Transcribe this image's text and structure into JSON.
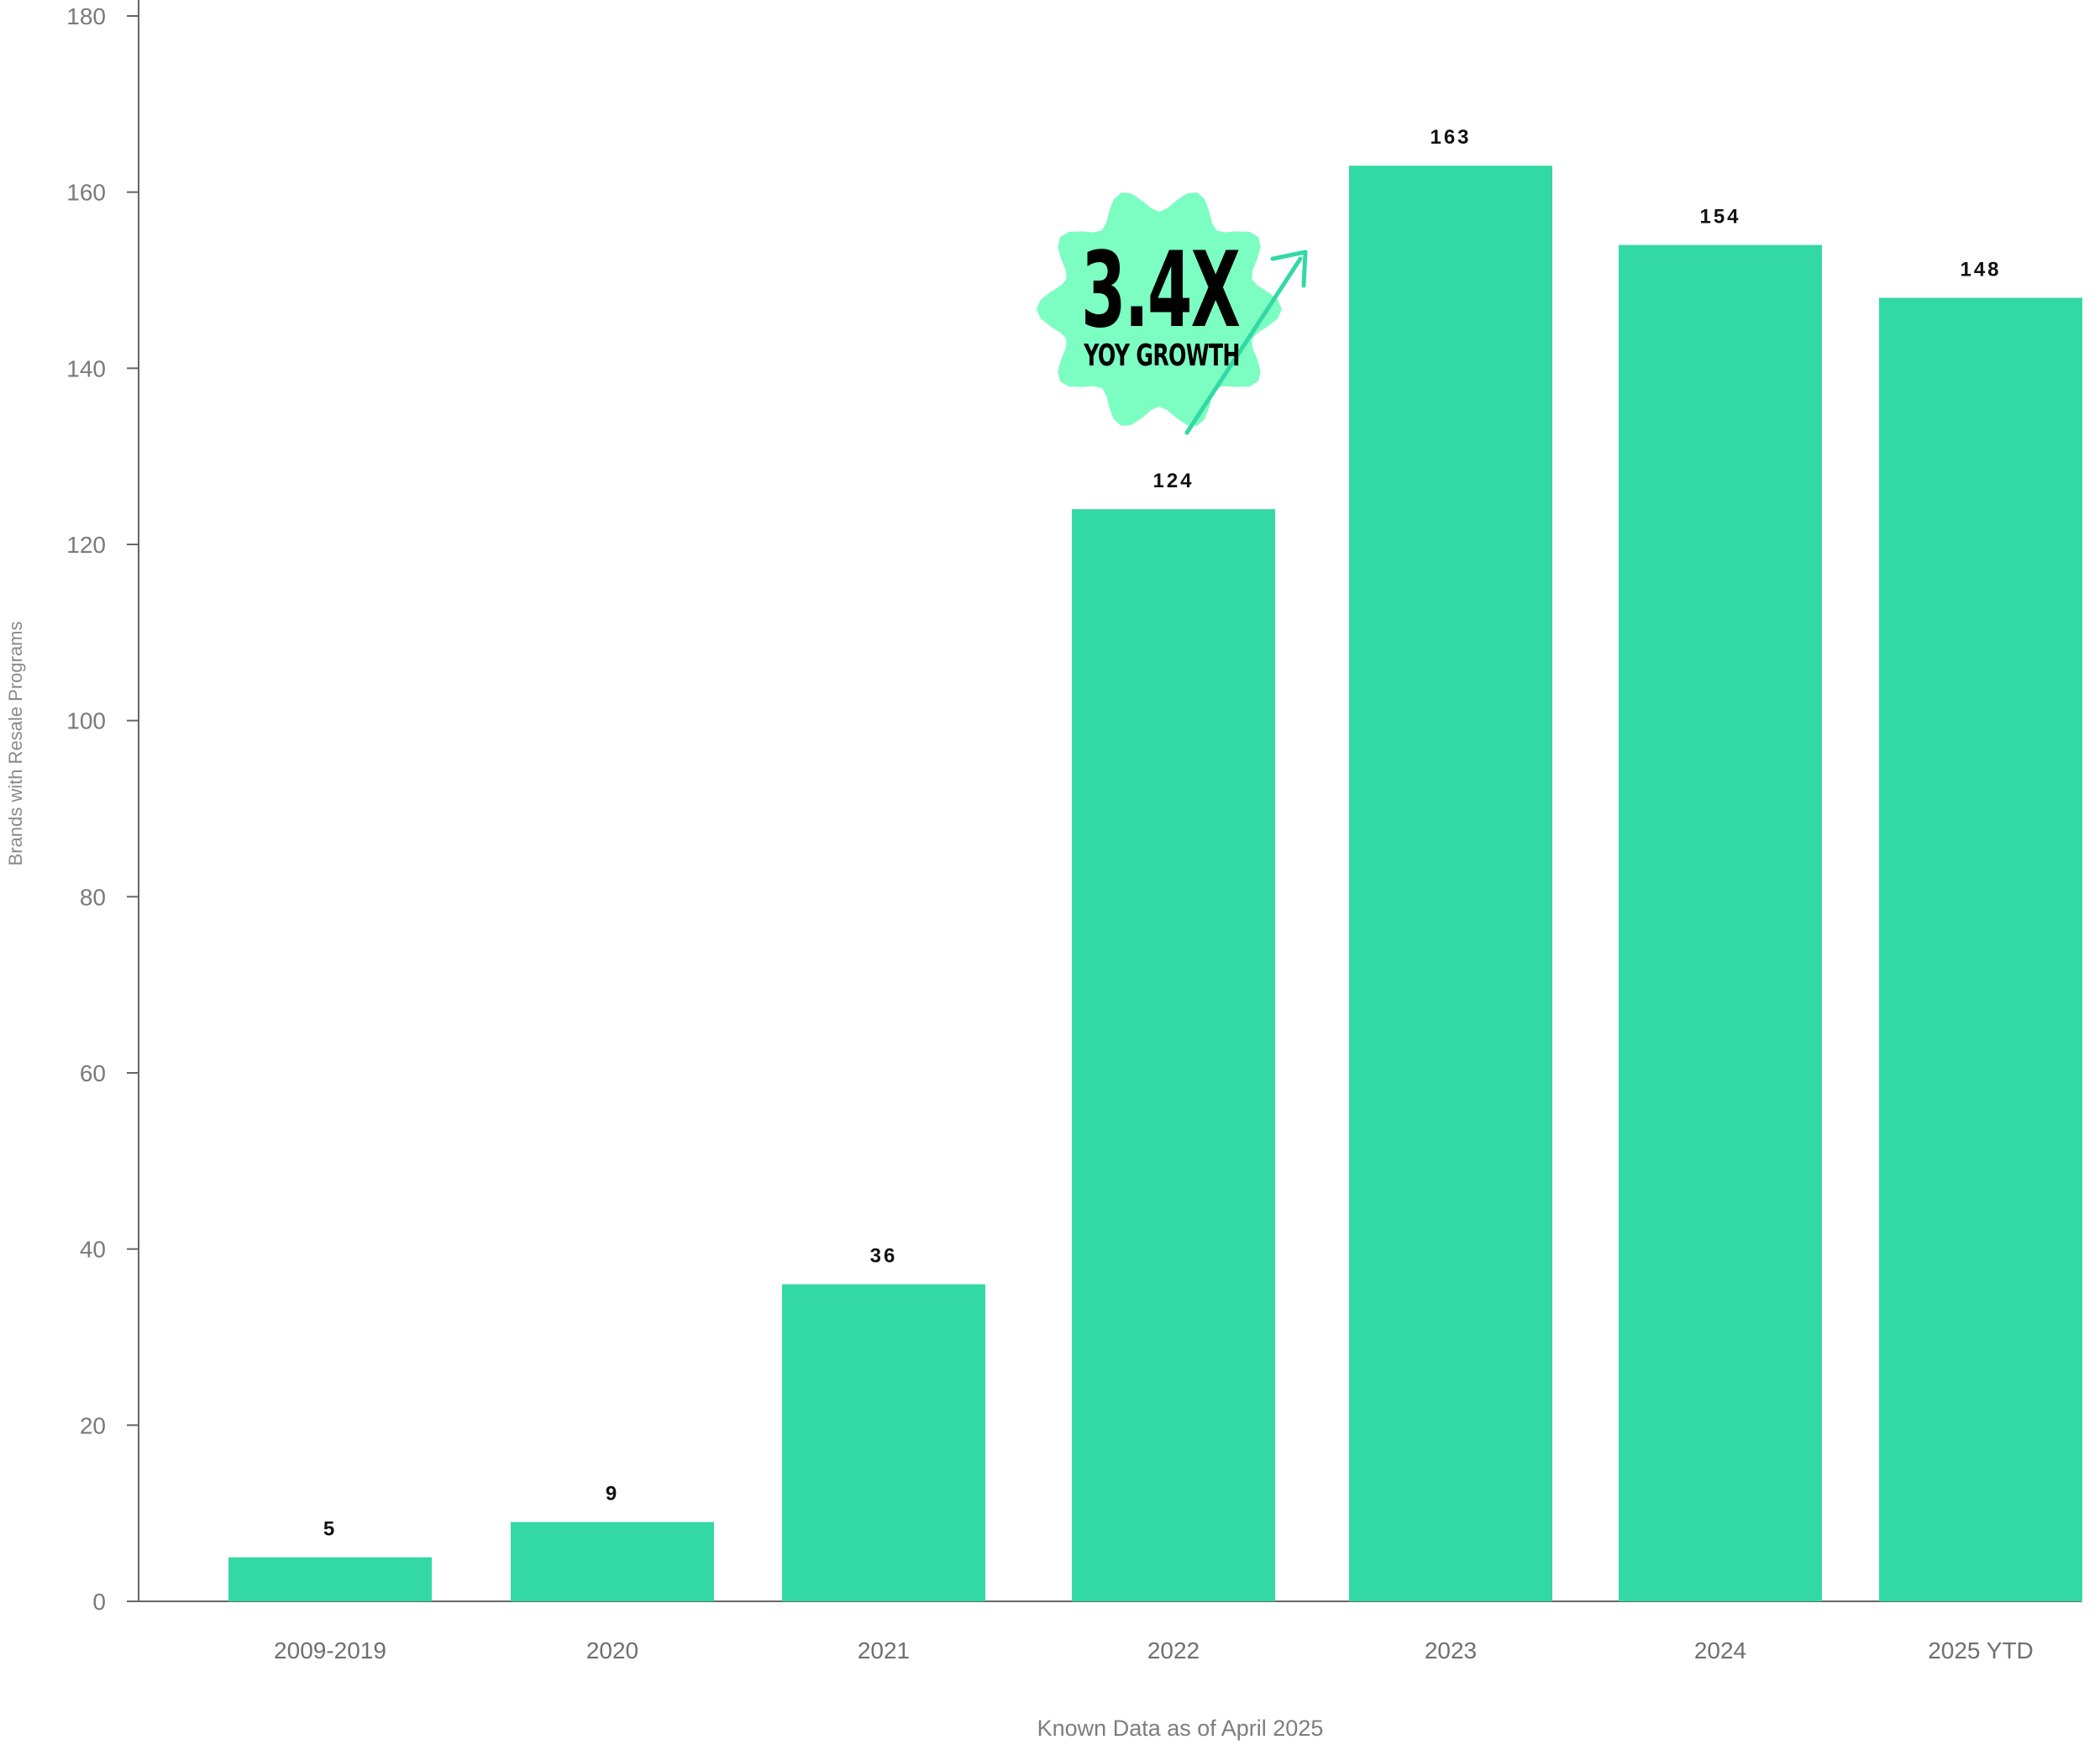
{
  "chart_data": {
    "type": "bar",
    "categories": [
      "2009-2019",
      "2020",
      "2021",
      "2022",
      "2023",
      "2024",
      "2025 YTD"
    ],
    "values": [
      5,
      9,
      36,
      124,
      163,
      154,
      148
    ],
    "data_labels": [
      "5",
      "9",
      "36",
      "124",
      "163",
      "154",
      "148"
    ],
    "title": "",
    "xlabel": "Known Data as of April 2025",
    "ylabel": "Brands with Resale Programs",
    "ylim": [
      0,
      180
    ],
    "yticks": [
      0,
      20,
      40,
      60,
      80,
      100,
      120,
      140,
      160,
      180
    ],
    "ytick_labels": [
      "0",
      "20",
      "40",
      "60",
      "80",
      "100",
      "120",
      "140",
      "160",
      "180"
    ],
    "grid": false,
    "legend": "none",
    "colors": {
      "bar": "#33D9A4",
      "axis": "#666666",
      "badge_fill": "#7CFDC2",
      "arrow": "#33D9A4"
    },
    "annotation": {
      "headline": "3.4X",
      "subline": "YOY GROWTH",
      "icon": "starburst-badge-with-up-arrow",
      "category": "2022"
    }
  }
}
